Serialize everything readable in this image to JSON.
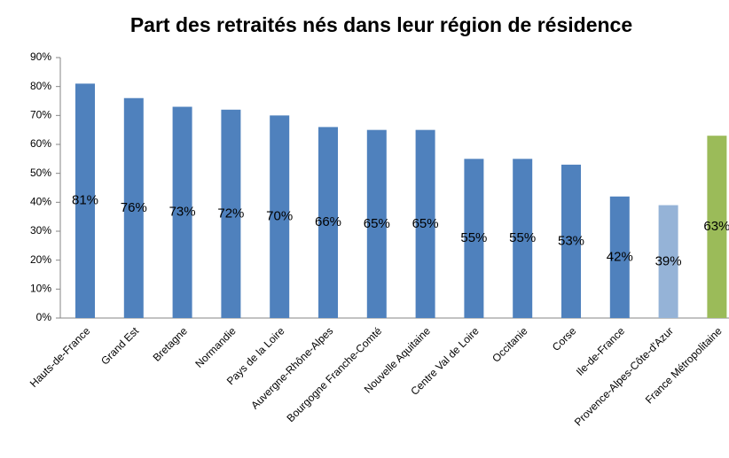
{
  "chart_data": {
    "type": "bar",
    "title": "Part des retraités nés dans leur région de résidence",
    "categories": [
      "Hauts-de-France",
      "Grand Est",
      "Bretagne",
      "Normandie",
      "Pays de la Loire",
      "Auvergne-Rhône-Alpes",
      "Bourgogne Franche-Comté",
      "Nouvelle Aquitaine",
      "Centre Val de Loire",
      "Occitanie",
      "Corse",
      "Ile-de-France",
      "Provence-Alpes-Côte-d'Azur",
      "France Métropolitaine"
    ],
    "values": [
      81,
      76,
      73,
      72,
      70,
      66,
      65,
      65,
      55,
      55,
      53,
      42,
      39,
      63
    ],
    "value_labels": [
      "81%",
      "76%",
      "73%",
      "72%",
      "70%",
      "66%",
      "65%",
      "65%",
      "55%",
      "55%",
      "53%",
      "42%",
      "39%",
      "63%"
    ],
    "colors": [
      "#4f81bd",
      "#4f81bd",
      "#4f81bd",
      "#4f81bd",
      "#4f81bd",
      "#4f81bd",
      "#4f81bd",
      "#4f81bd",
      "#4f81bd",
      "#4f81bd",
      "#4f81bd",
      "#4f81bd",
      "#95b3d7",
      "#9bbb59"
    ],
    "ylim": [
      0,
      90
    ],
    "yticks": [
      {
        "value": 0,
        "label": "0%"
      },
      {
        "value": 10,
        "label": "10%"
      },
      {
        "value": 20,
        "label": "20%"
      },
      {
        "value": 30,
        "label": "30%"
      },
      {
        "value": 40,
        "label": "40%"
      },
      {
        "value": 50,
        "label": "50%"
      },
      {
        "value": 60,
        "label": "60%"
      },
      {
        "value": 70,
        "label": "70%"
      },
      {
        "value": 80,
        "label": "80%"
      },
      {
        "value": 90,
        "label": "90%"
      }
    ],
    "grid": false
  }
}
